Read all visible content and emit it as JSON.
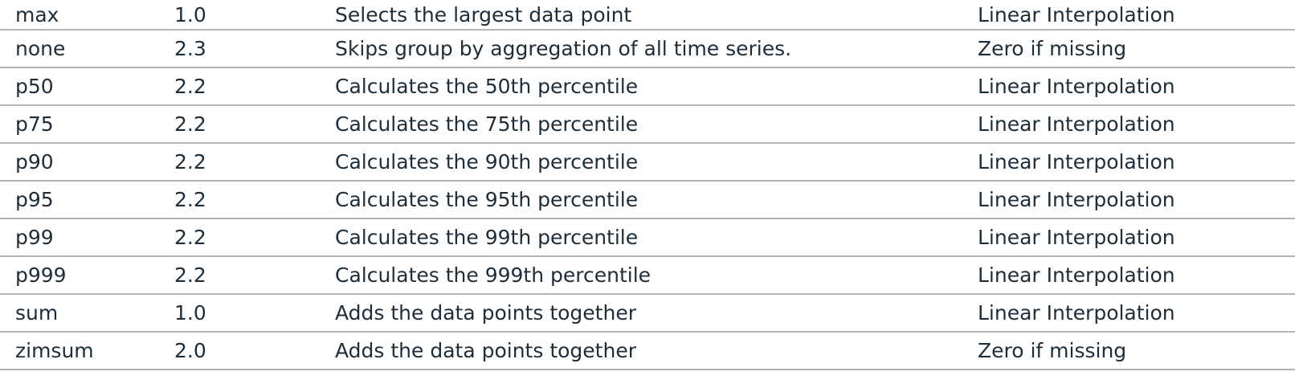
{
  "table": {
    "rows": [
      {
        "name": "max",
        "since": "1.0",
        "description": "Selects the largest data point",
        "interpolation": "Linear Interpolation"
      },
      {
        "name": "none",
        "since": "2.3",
        "description": "Skips group by aggregation of all time series.",
        "interpolation": "Zero if missing"
      },
      {
        "name": "p50",
        "since": "2.2",
        "description": "Calculates the 50th percentile",
        "interpolation": "Linear Interpolation"
      },
      {
        "name": "p75",
        "since": "2.2",
        "description": "Calculates the 75th percentile",
        "interpolation": "Linear Interpolation"
      },
      {
        "name": "p90",
        "since": "2.2",
        "description": "Calculates the 90th percentile",
        "interpolation": "Linear Interpolation"
      },
      {
        "name": "p95",
        "since": "2.2",
        "description": "Calculates the 95th percentile",
        "interpolation": "Linear Interpolation"
      },
      {
        "name": "p99",
        "since": "2.2",
        "description": "Calculates the 99th percentile",
        "interpolation": "Linear Interpolation"
      },
      {
        "name": "p999",
        "since": "2.2",
        "description": "Calculates the 999th percentile",
        "interpolation": "Linear Interpolation"
      },
      {
        "name": "sum",
        "since": "1.0",
        "description": "Adds the data points together",
        "interpolation": "Linear Interpolation"
      },
      {
        "name": "zimsum",
        "since": "2.0",
        "description": "Adds the data points together",
        "interpolation": "Zero if missing"
      }
    ]
  }
}
